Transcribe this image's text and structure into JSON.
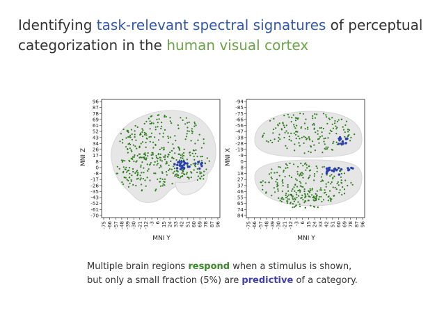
{
  "title": {
    "part1": "Identifying ",
    "highlight1": "task-relevant spectral signatures",
    "part2": " of perceptual categorization in the ",
    "highlight2": "human visual cortex",
    "color_highlight1": "#3458a8",
    "color_highlight2": "#6aa34a"
  },
  "colors": {
    "respond": "#2e7d1e",
    "predictive": "#2a3fb0",
    "brain": "#e6e6e6"
  },
  "left_plot": {
    "ylabel": "MNI Z",
    "xlabel": "MNI Y",
    "yticks": [
      "96",
      "87",
      "78",
      "69",
      "61",
      "52",
      "43",
      "34",
      "26",
      "17",
      "8",
      "0",
      "-8",
      "-17",
      "-26",
      "-35",
      "-43",
      "-52",
      "-61",
      "-70"
    ],
    "xticks": [
      "-75",
      "-66",
      "-57",
      "-48",
      "-39",
      "-30",
      "-21",
      "-12",
      "-3",
      "6",
      "15",
      "24",
      "33",
      "42",
      "51",
      "60",
      "69",
      "78",
      "87",
      "96"
    ]
  },
  "right_plot": {
    "ylabel": "MNI X",
    "xlabel": "MNI Y",
    "yticks": [
      "-94",
      "-85",
      "-75",
      "-66",
      "-56",
      "-47",
      "-38",
      "-28",
      "-19",
      "-9",
      "0",
      "8",
      "18",
      "27",
      "37",
      "46",
      "55",
      "65",
      "74",
      "84"
    ],
    "xticks": [
      "-75",
      "-66",
      "-57",
      "-48",
      "-39",
      "-30",
      "-21",
      "-12",
      "-3",
      "6",
      "15",
      "24",
      "33",
      "42",
      "51",
      "60",
      "69",
      "78",
      "87",
      "96"
    ]
  },
  "caption": {
    "line1_a": "Multiple brain regions ",
    "line1_b": "respond",
    "line1_c": " when a stimulus is shown,",
    "line2_a": "but only a small fraction (5%) are ",
    "line2_b": "predictive",
    "line2_c": " of a category."
  }
}
